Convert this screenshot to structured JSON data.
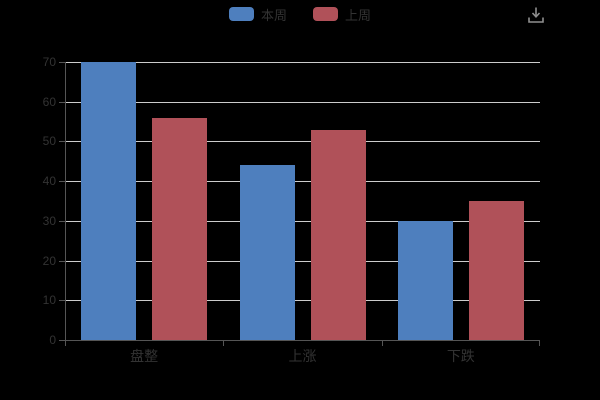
{
  "background": "#000000",
  "legend": {
    "items": [
      {
        "label": "本周",
        "color": "#4e7fbe"
      },
      {
        "label": "上周",
        "color": "#b05159"
      }
    ],
    "text_color": "#333333"
  },
  "toolbox": {
    "save_icon": "download-icon",
    "icon_color": "#8f8f8f"
  },
  "chart_data": {
    "type": "bar",
    "categories": [
      "盘整",
      "上涨",
      "下跌"
    ],
    "series": [
      {
        "name": "本周",
        "color": "#4e7fbe",
        "values": [
          70,
          44,
          30
        ]
      },
      {
        "name": "上周",
        "color": "#b05159",
        "values": [
          56,
          53,
          35
        ]
      }
    ],
    "title": "",
    "xlabel": "",
    "ylabel": "",
    "ylim": [
      0,
      70
    ],
    "y_ticks": [
      0,
      10,
      20,
      30,
      40,
      50,
      60,
      70
    ],
    "grid": true,
    "gridline_color": "#cccccc",
    "axis_color": "#555555",
    "label_color": "#333333",
    "legend_position": "top-center"
  }
}
